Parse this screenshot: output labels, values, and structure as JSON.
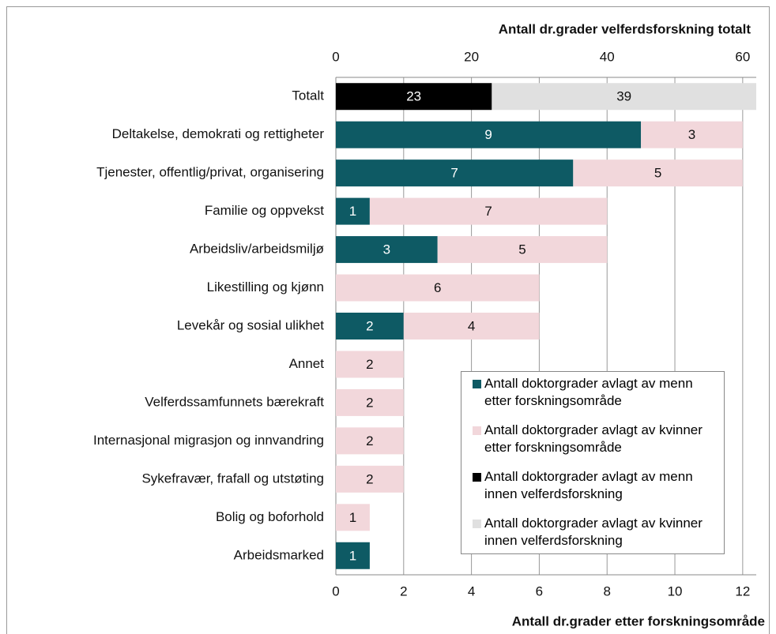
{
  "chart_data": {
    "type": "bar",
    "orientation": "horizontal",
    "stacked": true,
    "xlabel": "Antall dr.grader etter forskningsområde",
    "x2label": "Antall dr.grader velferdsforskning totalt",
    "categories": [
      "Totalt",
      "Deltakelse, demokrati og rettigheter",
      "Tjenester, offentlig/privat, organisering",
      "Familie og oppvekst",
      "Arbeidsliv/arbeidsmiljø",
      "Likestilling og kjønn",
      "Levekår og sosial ulikhet",
      "Annet",
      "Velferdssamfunnets bærekraft",
      "Internasjonal migrasjon og innvandring",
      "Sykefravær, frafall og utstøting",
      "Bolig og boforhold",
      "Arbeidsmarked"
    ],
    "series": [
      {
        "name": "Antall doktorgrader avlagt av menn etter forskningsområde",
        "color": "#0e5a64",
        "values": [
          null,
          9,
          7,
          1,
          3,
          null,
          2,
          null,
          null,
          null,
          null,
          null,
          1
        ]
      },
      {
        "name": "Antall doktorgrader avlagt av kvinner etter forskningsområde",
        "color": "#f2d7db",
        "values": [
          null,
          3,
          5,
          7,
          5,
          6,
          4,
          2,
          2,
          2,
          2,
          1,
          null
        ]
      },
      {
        "name": "Antall doktorgrader avlagt av menn innen velferdsforskning",
        "color": "#000000",
        "axis": "x2",
        "values": [
          23,
          null,
          null,
          null,
          null,
          null,
          null,
          null,
          null,
          null,
          null,
          null,
          null
        ]
      },
      {
        "name": "Antall doktorgrader avlagt av kvinner innen velferdsforskning",
        "color": "#e0e0e0",
        "axis": "x2",
        "values": [
          39,
          null,
          null,
          null,
          null,
          null,
          null,
          null,
          null,
          null,
          null,
          null,
          null
        ]
      }
    ],
    "xlim": [
      0,
      12.4
    ],
    "xticks": [
      0,
      2,
      4,
      6,
      8,
      10,
      12
    ],
    "x2lim": [
      0,
      62
    ],
    "x2ticks": [
      0,
      20,
      40,
      60
    ],
    "grid": true,
    "data_labels": true,
    "legend": "lower right"
  }
}
